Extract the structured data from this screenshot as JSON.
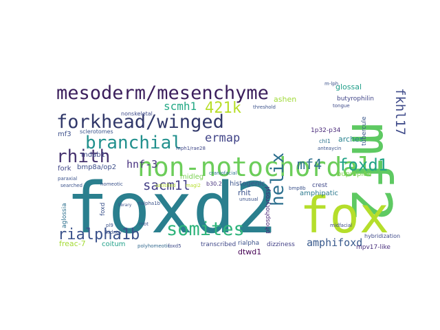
{
  "words": [
    {
      "text": "foxd2",
      "color": "#2a7f8e"
    },
    {
      "text": "mf2",
      "color": "#5ec962"
    },
    {
      "text": "fox",
      "color": "#b5de2b"
    },
    {
      "text": "non-notochordal",
      "color": "#6ccd5a"
    },
    {
      "text": "mesoderm/mesenchyme",
      "color": "#3b1e5c"
    },
    {
      "text": "forkhead/winged",
      "color": "#31386a"
    },
    {
      "text": "branchial",
      "color": "#21908d"
    },
    {
      "text": "somites",
      "color": "#2fb47c"
    },
    {
      "text": "helix",
      "color": "#2c6f8e"
    },
    {
      "text": "rhith",
      "color": "#46336f"
    },
    {
      "text": "foxd1",
      "color": "#20a386"
    },
    {
      "text": "rialpha1b",
      "color": "#3b528b"
    },
    {
      "text": "421k",
      "color": "#b8de29"
    },
    {
      "text": "sacm1l",
      "color": "#433e85"
    },
    {
      "text": "fkhl17",
      "color": "#3e4a89"
    },
    {
      "text": "mf4",
      "color": "#2d708e"
    },
    {
      "text": "ermap",
      "color": "#414487"
    },
    {
      "text": "scmh1",
      "color": "#22a884"
    },
    {
      "text": "hnf-3",
      "color": "#46307e"
    },
    {
      "text": "amphifoxd",
      "color": "#38598c"
    },
    {
      "text": "mdab1",
      "color": "#3e4c8a"
    },
    {
      "text": "bmp8a/op2",
      "color": "#3d4e8a"
    },
    {
      "text": "fork",
      "color": "#404688"
    },
    {
      "text": "midleg",
      "color": "#7ad151"
    },
    {
      "text": "b30.2",
      "color": "#46327e"
    },
    {
      "text": "rhit",
      "color": "#3b528b"
    },
    {
      "text": "ashen",
      "color": "#a0da39"
    },
    {
      "text": "arches",
      "color": "#26828e"
    },
    {
      "text": "glossal",
      "color": "#1f9e89"
    },
    {
      "text": "butyrophilin",
      "color": "#404588"
    },
    {
      "text": "1p32-p34",
      "color": "#4a2a7a"
    },
    {
      "text": "chl1",
      "color": "#2c728e"
    },
    {
      "text": "tubercule",
      "color": "#39568c"
    },
    {
      "text": "mf3",
      "color": "#3c4f8a"
    },
    {
      "text": "sclerotomes",
      "color": "#3a548c"
    },
    {
      "text": "nonskeletal",
      "color": "#3e4a89"
    },
    {
      "text": "dtwd1",
      "color": "#440154"
    },
    {
      "text": "rialpha",
      "color": "#3b528b"
    },
    {
      "text": "coitum",
      "color": "#1fa088"
    },
    {
      "text": "transcribed",
      "color": "#3f4788"
    },
    {
      "text": "dizziness",
      "color": "#424086"
    },
    {
      "text": "mpv17-like",
      "color": "#472d7b"
    },
    {
      "text": "amphipatic",
      "color": "#2a788e"
    },
    {
      "text": "bupropion",
      "color": "#7fd34e"
    },
    {
      "text": "crest",
      "color": "#3f4889"
    },
    {
      "text": "histogenic",
      "color": "#3a538b"
    },
    {
      "text": "phosphotyrosyl",
      "color": "#482576"
    },
    {
      "text": "aglossia",
      "color": "#2d708e"
    },
    {
      "text": "freac-7",
      "color": "#a5db36"
    },
    {
      "text": "foxd",
      "color": "#3b528b"
    },
    {
      "text": "hybridization",
      "color": "#3e4989"
    },
    {
      "text": "tongue",
      "color": "#3e4a89"
    },
    {
      "text": "m-lph",
      "color": "#3b528b"
    },
    {
      "text": "rialpha1b",
      "color": "#3b528b"
    },
    {
      "text": "mph1/rae28",
      "color": "#3f4788"
    },
    {
      "text": "craniofacial",
      "color": "#2c738e"
    },
    {
      "text": "paraxial",
      "color": "#3b528b"
    },
    {
      "text": "searched",
      "color": "#3b528b"
    },
    {
      "text": "homeotic",
      "color": "#3b528b"
    },
    {
      "text": "polyhomeotic",
      "color": "#31688e"
    },
    {
      "text": "foxd5",
      "color": "#3e4a89"
    },
    {
      "text": "midfacial",
      "color": "#3e4a89"
    },
    {
      "text": "unusual",
      "color": "#3b528b"
    },
    {
      "text": "bmp8b",
      "color": "#3b528b"
    },
    {
      "text": "threshold",
      "color": "#3b528b"
    },
    {
      "text": "anteaycin",
      "color": "#3b528b"
    },
    {
      "text": "satisfied",
      "color": "#b5de2b"
    },
    {
      "text": "magi2",
      "color": "#b5de2b"
    },
    {
      "text": "kidney",
      "color": "#3b528b"
    },
    {
      "text": "library",
      "color": "#3b528b"
    },
    {
      "text": "mbt",
      "color": "#3b528b"
    },
    {
      "text": "pl9",
      "color": "#3b528b"
    }
  ]
}
